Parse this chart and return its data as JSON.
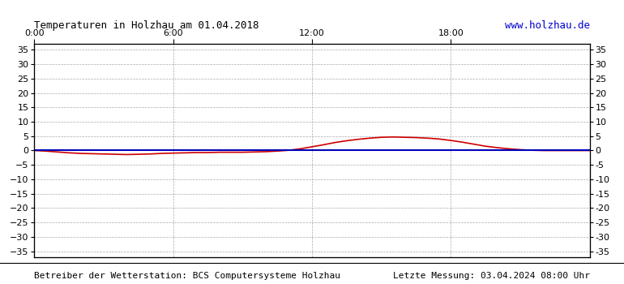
{
  "title": "Temperaturen in Holzhau am 01.04.2018",
  "url_text": "www.holzhau.de",
  "footer_left": "Betreiber der Wetterstation: BCS Computersysteme Holzhau",
  "footer_right": "Letzte Messung: 03.04.2024 08:00 Uhr",
  "x_ticks": [
    0,
    6,
    12,
    18
  ],
  "x_tick_labels": [
    "0:00",
    "6:00",
    "12:00",
    "18:00"
  ],
  "ylim": [
    -37,
    37
  ],
  "xlim": [
    0,
    24
  ],
  "y_ticks": [
    -35,
    -30,
    -25,
    -20,
    -15,
    -10,
    -5,
    0,
    5,
    10,
    15,
    20,
    25,
    30,
    35
  ],
  "grid_color": "#aaaaaa",
  "bg_color": "#ffffff",
  "line1_color": "#0000bb",
  "line2_color": "#cc0000",
  "title_color": "#000000",
  "url_color": "#0000cc",
  "footer_color": "#000000",
  "border_color": "#000000",
  "blue_x": [
    0,
    24
  ],
  "blue_y": [
    0.0,
    0.0
  ],
  "red_x": [
    0.0,
    0.5,
    1.0,
    1.5,
    2.0,
    2.5,
    3.0,
    3.5,
    4.0,
    4.5,
    5.0,
    5.5,
    6.0,
    6.5,
    7.0,
    7.5,
    8.0,
    8.5,
    9.0,
    9.5,
    10.0,
    10.5,
    11.0,
    11.5,
    12.0,
    12.5,
    13.0,
    13.5,
    14.0,
    14.5,
    15.0,
    15.5,
    16.0,
    16.5,
    17.0,
    17.5,
    18.0,
    18.5,
    19.0,
    19.5,
    20.0,
    20.5,
    21.0,
    21.5,
    22.0,
    22.5,
    23.0,
    23.5,
    24.0
  ],
  "red_y": [
    0.0,
    -0.2,
    -0.5,
    -0.8,
    -1.0,
    -1.1,
    -1.2,
    -1.3,
    -1.4,
    -1.3,
    -1.2,
    -1.0,
    -0.9,
    -0.8,
    -0.7,
    -0.7,
    -0.6,
    -0.6,
    -0.6,
    -0.5,
    -0.4,
    -0.2,
    0.1,
    0.6,
    1.3,
    2.0,
    2.8,
    3.4,
    3.9,
    4.3,
    4.6,
    4.7,
    4.6,
    4.5,
    4.3,
    4.0,
    3.5,
    2.9,
    2.2,
    1.5,
    1.0,
    0.6,
    0.3,
    0.1,
    0.0,
    0.0,
    0.0,
    0.0,
    0.0
  ],
  "title_fontsize": 9,
  "url_fontsize": 9,
  "tick_fontsize": 8,
  "footer_fontsize": 8
}
